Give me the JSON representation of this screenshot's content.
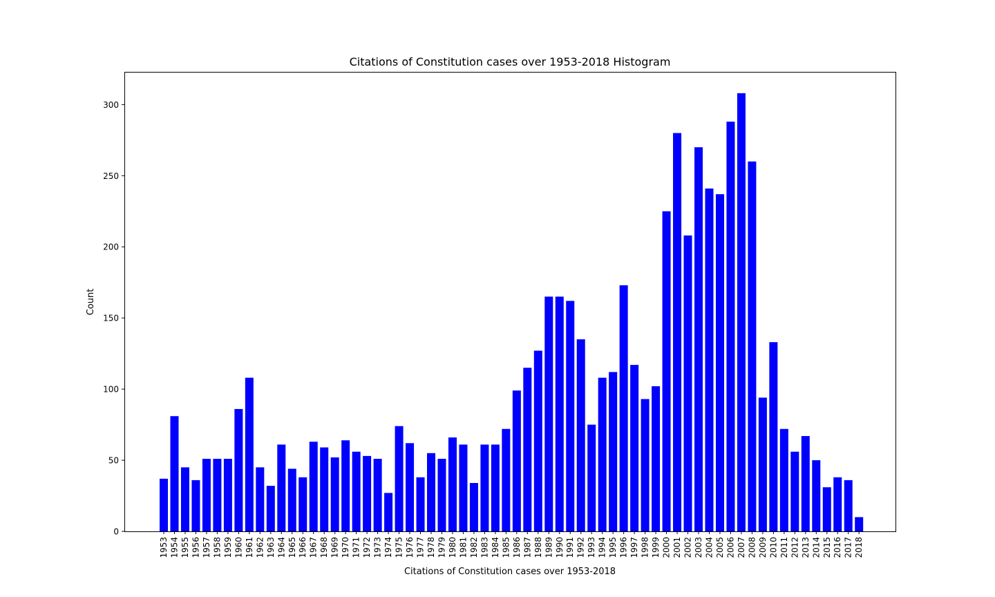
{
  "chart_data": {
    "type": "bar",
    "title": "Citations of Constitution cases over 1953-2018 Histogram",
    "xlabel": "Citations of Constitution cases over 1953-2018",
    "ylabel": "Count",
    "categories": [
      "1953",
      "1954",
      "1955",
      "1956",
      "1957",
      "1958",
      "1959",
      "1960",
      "1961",
      "1962",
      "1963",
      "1964",
      "1965",
      "1966",
      "1967",
      "1968",
      "1969",
      "1970",
      "1971",
      "1972",
      "1973",
      "1974",
      "1975",
      "1976",
      "1977",
      "1978",
      "1979",
      "1980",
      "1981",
      "1982",
      "1983",
      "1984",
      "1985",
      "1986",
      "1987",
      "1988",
      "1989",
      "1990",
      "1991",
      "1992",
      "1993",
      "1994",
      "1995",
      "1996",
      "1997",
      "1998",
      "1999",
      "2000",
      "2001",
      "2002",
      "2003",
      "2004",
      "2005",
      "2006",
      "2007",
      "2008",
      "2009",
      "2010",
      "2011",
      "2012",
      "2013",
      "2014",
      "2015",
      "2016",
      "2017",
      "2018"
    ],
    "values": [
      37,
      81,
      45,
      36,
      51,
      51,
      51,
      86,
      108,
      45,
      32,
      61,
      44,
      38,
      63,
      59,
      52,
      64,
      56,
      53,
      51,
      27,
      74,
      62,
      38,
      55,
      51,
      66,
      61,
      34,
      61,
      61,
      72,
      99,
      115,
      127,
      165,
      165,
      162,
      135,
      75,
      108,
      112,
      173,
      117,
      93,
      102,
      225,
      280,
      208,
      270,
      241,
      237,
      288,
      308,
      260,
      94,
      133,
      72,
      56,
      67,
      50,
      31,
      38,
      36,
      10
    ],
    "yticks": [
      0,
      50,
      100,
      150,
      200,
      250,
      300
    ],
    "ylim": [
      0,
      323
    ],
    "bar_color": "#0000ff",
    "grid": false,
    "legend": "none"
  }
}
